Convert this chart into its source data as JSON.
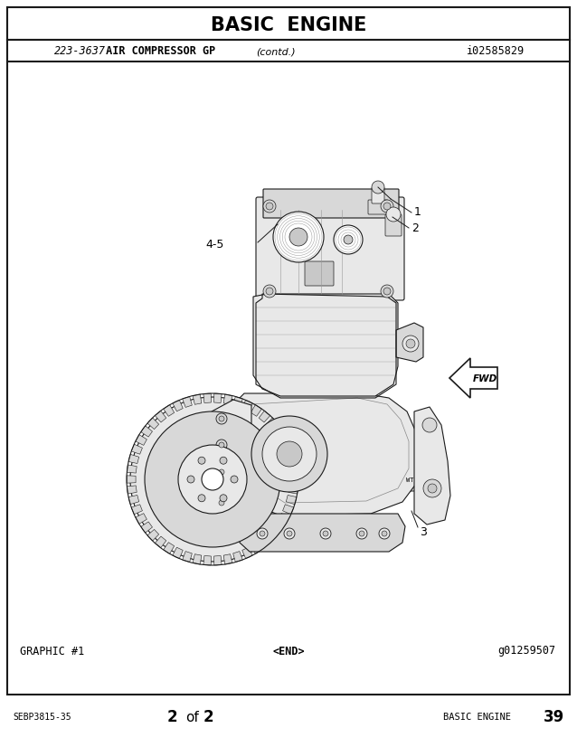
{
  "title": "BASIC  ENGINE",
  "subtitle_left": "223-3637",
  "subtitle_main": " AIR COMPRESSOR GP",
  "subtitle_italic": "(contd.)",
  "subtitle_right": "i02585829",
  "footer_left": "SEBP3815-35",
  "footer_center": "2",
  "footer_of": "of",
  "footer_2": "2",
  "footer_right_label": "BASIC ENGINE",
  "footer_right_num": "39",
  "graphic_label": "GRAPHIC #1",
  "end_label": "<END>",
  "graphic_id": "g01259507",
  "bg_color": "#ffffff",
  "border_color": "#000000",
  "label_1": "1",
  "label_2": "2",
  "label_3": "3",
  "label_45": "4-5",
  "fwd_label": "FWD"
}
